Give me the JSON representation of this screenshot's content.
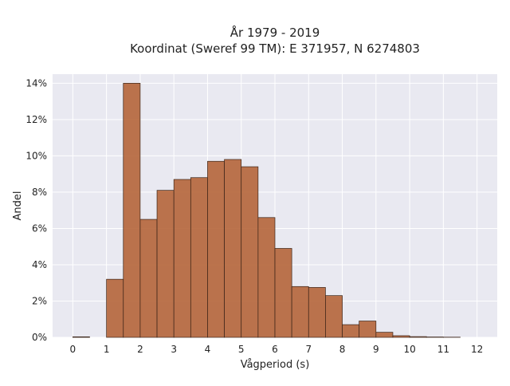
{
  "chart_data": {
    "type": "bar",
    "title_line1": "År 1979 - 2019",
    "title_line2": "Koordinat (Sweref 99 TM): E 371957, N 6274803",
    "xlabel": "Vågperiod (s)",
    "ylabel": "Andel",
    "xlim": [
      -0.6,
      12.6
    ],
    "ylim": [
      0,
      0.145
    ],
    "x_ticks": [
      0,
      1,
      2,
      3,
      4,
      5,
      6,
      7,
      8,
      9,
      10,
      11,
      12
    ],
    "x_tick_labels": [
      "0",
      "1",
      "2",
      "3",
      "4",
      "5",
      "6",
      "7",
      "8",
      "9",
      "10",
      "11",
      "12"
    ],
    "y_ticks": [
      0,
      0.02,
      0.04,
      0.06,
      0.08,
      0.1,
      0.12,
      0.14
    ],
    "y_tick_labels": [
      "0%",
      "2%",
      "4%",
      "6%",
      "8%",
      "10%",
      "12%",
      "14%"
    ],
    "bin_width": 0.5,
    "bins": [
      {
        "x0": 0.0,
        "x1": 0.5,
        "value": 0.0003
      },
      {
        "x0": 0.5,
        "x1": 1.0,
        "value": 0.0
      },
      {
        "x0": 1.0,
        "x1": 1.5,
        "value": 0.032
      },
      {
        "x0": 1.5,
        "x1": 2.0,
        "value": 0.14
      },
      {
        "x0": 2.0,
        "x1": 2.5,
        "value": 0.065
      },
      {
        "x0": 2.5,
        "x1": 3.0,
        "value": 0.081
      },
      {
        "x0": 3.0,
        "x1": 3.5,
        "value": 0.087
      },
      {
        "x0": 3.5,
        "x1": 4.0,
        "value": 0.088
      },
      {
        "x0": 4.0,
        "x1": 4.5,
        "value": 0.097
      },
      {
        "x0": 4.5,
        "x1": 5.0,
        "value": 0.098
      },
      {
        "x0": 5.0,
        "x1": 5.5,
        "value": 0.094
      },
      {
        "x0": 5.5,
        "x1": 6.0,
        "value": 0.066
      },
      {
        "x0": 6.0,
        "x1": 6.5,
        "value": 0.049
      },
      {
        "x0": 6.5,
        "x1": 7.0,
        "value": 0.028
      },
      {
        "x0": 7.0,
        "x1": 7.5,
        "value": 0.0275
      },
      {
        "x0": 7.5,
        "x1": 8.0,
        "value": 0.023
      },
      {
        "x0": 8.0,
        "x1": 8.5,
        "value": 0.007
      },
      {
        "x0": 8.5,
        "x1": 9.0,
        "value": 0.009
      },
      {
        "x0": 9.0,
        "x1": 9.5,
        "value": 0.0028
      },
      {
        "x0": 9.5,
        "x1": 10.0,
        "value": 0.0009
      },
      {
        "x0": 10.0,
        "x1": 10.5,
        "value": 0.0004
      },
      {
        "x0": 10.5,
        "x1": 11.0,
        "value": 0.0002
      },
      {
        "x0": 11.0,
        "x1": 11.5,
        "value": 0.0001
      }
    ],
    "grid": true,
    "bar_color": "#b5653a",
    "bar_edge_color": "#3a2418",
    "plot_background": "#e9e9f1",
    "grid_color": "#ffffff"
  }
}
